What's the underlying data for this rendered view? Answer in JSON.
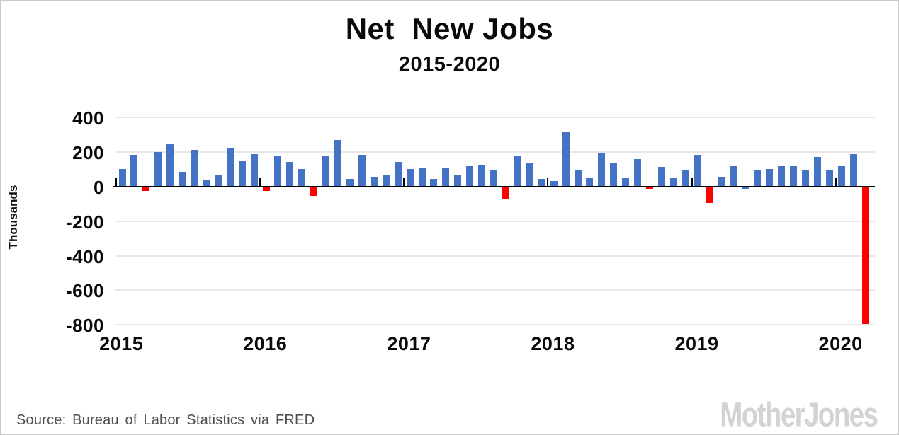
{
  "header": {
    "title": "Net  New Jobs",
    "subtitle": "2015-2020"
  },
  "chart_data": {
    "type": "bar",
    "title": "Net  New Jobs",
    "subtitle": "2015-2020",
    "ylabel": "Thousands",
    "xlabel": "",
    "ylim": [
      -800,
      400
    ],
    "grid": true,
    "legend": "none",
    "y_ticks": [
      400,
      200,
      0,
      -200,
      -400,
      -600,
      -800
    ],
    "y_tick_labels": [
      "400",
      "200",
      "0",
      "-200",
      "-400",
      "-600",
      "-800"
    ],
    "x_tick_labels": [
      "2015",
      "2016",
      "2017",
      "2018",
      "2019",
      "2020"
    ],
    "categories": [
      "2015-01",
      "2015-02",
      "2015-03",
      "2015-04",
      "2015-05",
      "2015-06",
      "2015-07",
      "2015-08",
      "2015-09",
      "2015-10",
      "2015-11",
      "2015-12",
      "2016-01",
      "2016-02",
      "2016-03",
      "2016-04",
      "2016-05",
      "2016-06",
      "2016-07",
      "2016-08",
      "2016-09",
      "2016-10",
      "2016-11",
      "2016-12",
      "2017-01",
      "2017-02",
      "2017-03",
      "2017-04",
      "2017-05",
      "2017-06",
      "2017-07",
      "2017-08",
      "2017-09",
      "2017-10",
      "2017-11",
      "2017-12",
      "2018-01",
      "2018-02",
      "2018-03",
      "2018-04",
      "2018-05",
      "2018-06",
      "2018-07",
      "2018-08",
      "2018-09",
      "2018-10",
      "2018-11",
      "2018-12",
      "2019-01",
      "2019-02",
      "2019-03",
      "2019-04",
      "2019-05",
      "2019-06",
      "2019-07",
      "2019-08",
      "2019-09",
      "2019-10",
      "2019-11",
      "2019-12",
      "2020-01",
      "2020-02",
      "2020-03"
    ],
    "values": [
      100,
      180,
      -20,
      195,
      240,
      80,
      210,
      35,
      60,
      220,
      145,
      185,
      -20,
      175,
      140,
      100,
      -50,
      175,
      265,
      40,
      180,
      55,
      60,
      140,
      100,
      105,
      40,
      105,
      60,
      120,
      125,
      90,
      -70,
      175,
      135,
      40,
      30,
      315,
      90,
      50,
      190,
      135,
      45,
      155,
      -10,
      110,
      45,
      95,
      180,
      -90,
      55,
      120,
      -10,
      95,
      100,
      115,
      115,
      95,
      170,
      95,
      120,
      185,
      -790
    ],
    "bar_color_positive": "#4472c4",
    "bar_color_negative": "#fe0000",
    "color_overrides": {
      "52": "#4472c4"
    }
  },
  "footer": {
    "source": "Source: Bureau of Labor Statistics via FRED",
    "brand": "MotherJones"
  }
}
